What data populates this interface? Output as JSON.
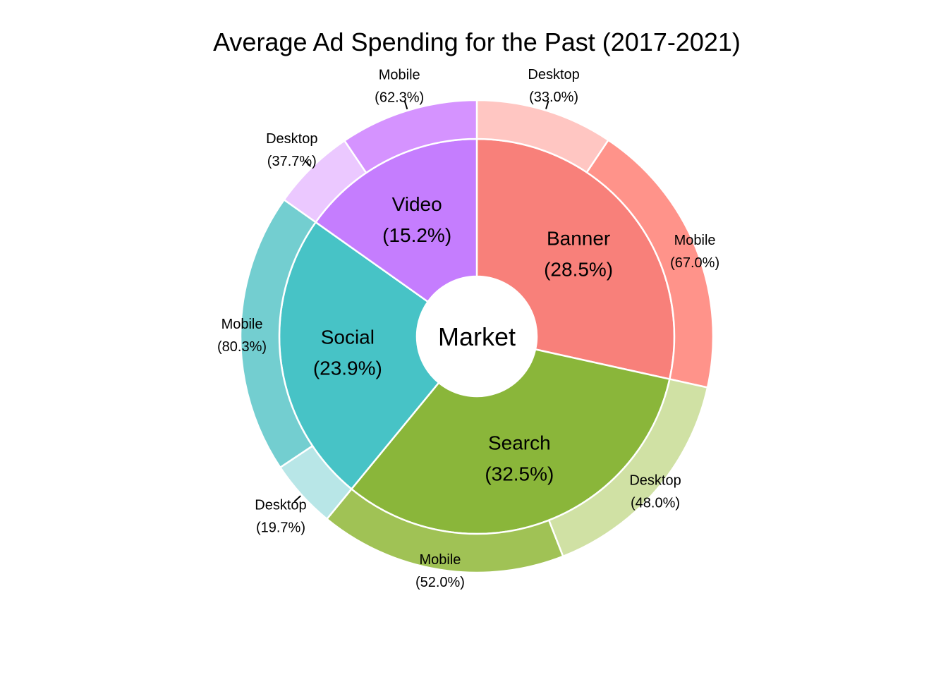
{
  "chart_data": {
    "type": "pie",
    "subtype": "nested-donut",
    "title": "Average Ad Spending for the Past (2017-2021)",
    "center_label": "Market",
    "inner": [
      {
        "name": "Banner",
        "value": 28.5,
        "label": "(28.5%)",
        "color": "#F8807A"
      },
      {
        "name": "Search",
        "value": 32.5,
        "label": "(32.5%)",
        "color": "#8AB63A"
      },
      {
        "name": "Social",
        "value": 23.9,
        "label": "(23.9%)",
        "color": "#47C3C6"
      },
      {
        "name": "Video",
        "value": 15.2,
        "label": "(15.2%)",
        "color": "#C57DFE"
      }
    ],
    "outer": [
      {
        "parent": "Banner",
        "name": "Desktop",
        "share": 33.0,
        "label": "(33.0%)",
        "color": "#FFC6C2",
        "leader": true
      },
      {
        "parent": "Banner",
        "name": "Mobile",
        "share": 67.0,
        "label": "(67.0%)",
        "color": "#FF938A",
        "leader": false
      },
      {
        "parent": "Search",
        "name": "Desktop",
        "share": 48.0,
        "label": "(48.0%)",
        "color": "#D0E1A4",
        "leader": false
      },
      {
        "parent": "Search",
        "name": "Mobile",
        "share": 52.0,
        "label": "(52.0%)",
        "color": "#A0C255",
        "leader": false
      },
      {
        "parent": "Social",
        "name": "Desktop",
        "share": 19.7,
        "label": "(19.7%)",
        "color": "#B8E6E7",
        "leader": true
      },
      {
        "parent": "Social",
        "name": "Mobile",
        "share": 80.3,
        "label": "(80.3%)",
        "color": "#73CED0",
        "leader": false
      },
      {
        "parent": "Video",
        "name": "Desktop",
        "share": 37.7,
        "label": "(37.7%)",
        "color": "#EBC8FF",
        "leader": true
      },
      {
        "parent": "Video",
        "name": "Mobile",
        "share": 62.3,
        "label": "(62.3%)",
        "color": "#D593FF",
        "leader": true
      }
    ],
    "legend": "none",
    "grid": false
  }
}
